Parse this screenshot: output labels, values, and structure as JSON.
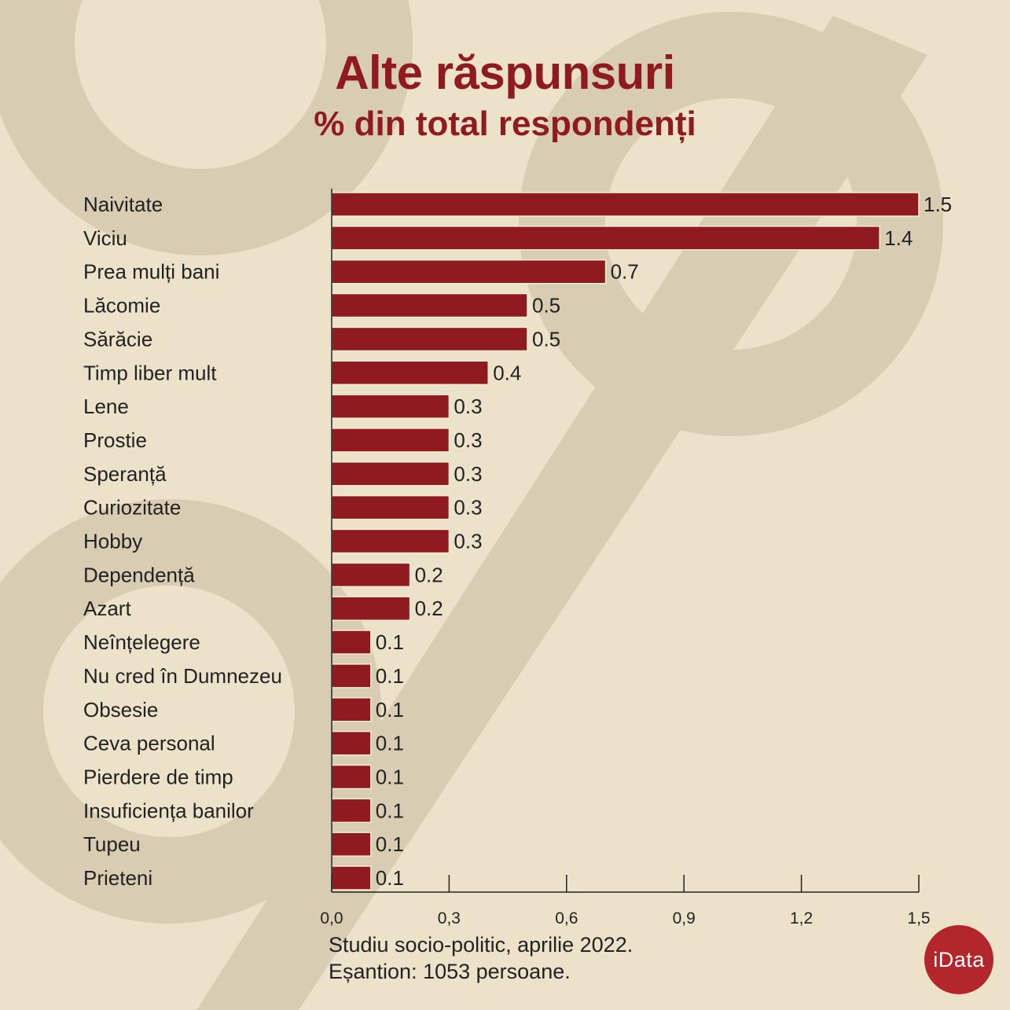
{
  "header": {
    "title": "Alte răspunsuri",
    "subtitle": "% din total respondenți"
  },
  "footer": {
    "line1": "Studiu socio-politic, aprilie 2022.",
    "line2": "Eșantion: 1053 persoane."
  },
  "brand": {
    "logo_text": "iData",
    "accent_color": "#8f1a1f",
    "logo_color": "#b3262b"
  },
  "chart_data": {
    "type": "bar",
    "orientation": "horizontal",
    "title": "Alte răspunsuri",
    "subtitle": "% din total respondenți",
    "categories": [
      "Naivitate",
      "Viciu",
      "Prea mulți bani",
      "Lăcomie",
      "Sărăcie",
      "Timp liber mult",
      "Lene",
      "Prostie",
      "Speranță",
      "Curiozitate",
      "Hobby",
      "Dependență",
      "Azart",
      "Neînțelegere",
      "Nu cred în Dumnezeu",
      "Obsesie",
      "Ceva personal",
      "Pierdere de timp",
      "Insuficiența banilor",
      "Tupeu",
      "Prieteni"
    ],
    "values": [
      1.5,
      1.4,
      0.7,
      0.5,
      0.5,
      0.4,
      0.3,
      0.3,
      0.3,
      0.3,
      0.3,
      0.2,
      0.2,
      0.1,
      0.1,
      0.1,
      0.1,
      0.1,
      0.1,
      0.1,
      0.1
    ],
    "value_labels": [
      "1.5",
      "1.4",
      "0.7",
      "0.5",
      "0.5",
      "0.4",
      "0.3",
      "0.3",
      "0.3",
      "0.3",
      "0.3",
      "0.2",
      "0.2",
      "0.1",
      "0.1",
      "0.1",
      "0.1",
      "0.1",
      "0.1",
      "0.1",
      "0.1"
    ],
    "xlim": [
      0,
      1.5
    ],
    "x_ticks": [
      0,
      0.3,
      0.6,
      0.9,
      1.2,
      1.5
    ],
    "x_tick_labels": [
      "0,0",
      "0,3",
      "0,6",
      "0,9",
      "1,2",
      "1,5"
    ],
    "bar_color": "#8f1a1f",
    "grid": false,
    "legend": "none"
  }
}
